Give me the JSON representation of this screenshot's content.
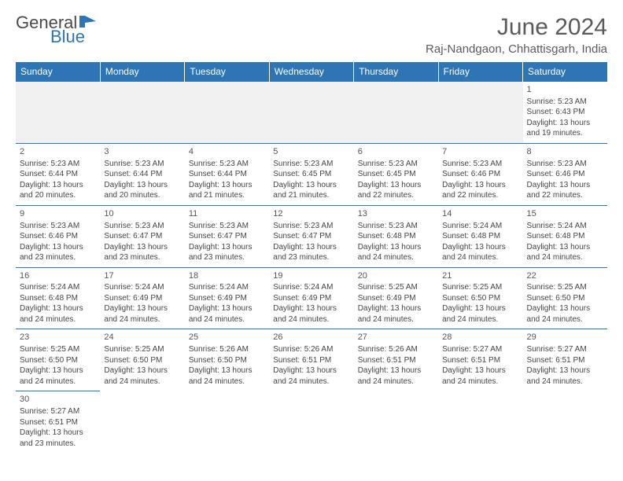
{
  "logo": {
    "text1": "General",
    "text2": "Blue",
    "accent": "#2e75b6"
  },
  "title": "June 2024",
  "location": "Raj-Nandgaon, Chhattisgarh, India",
  "colors": {
    "headerBg": "#2e75b6",
    "headerText": "#ffffff",
    "border": "#2e75b6",
    "text": "#444444",
    "muted": "#555555"
  },
  "weekdays": [
    "Sunday",
    "Monday",
    "Tuesday",
    "Wednesday",
    "Thursday",
    "Friday",
    "Saturday"
  ],
  "weeks": [
    [
      null,
      null,
      null,
      null,
      null,
      null,
      {
        "d": "1",
        "sr": "Sunrise: 5:23 AM",
        "ss": "Sunset: 6:43 PM",
        "dl1": "Daylight: 13 hours",
        "dl2": "and 19 minutes."
      }
    ],
    [
      {
        "d": "2",
        "sr": "Sunrise: 5:23 AM",
        "ss": "Sunset: 6:44 PM",
        "dl1": "Daylight: 13 hours",
        "dl2": "and 20 minutes."
      },
      {
        "d": "3",
        "sr": "Sunrise: 5:23 AM",
        "ss": "Sunset: 6:44 PM",
        "dl1": "Daylight: 13 hours",
        "dl2": "and 20 minutes."
      },
      {
        "d": "4",
        "sr": "Sunrise: 5:23 AM",
        "ss": "Sunset: 6:44 PM",
        "dl1": "Daylight: 13 hours",
        "dl2": "and 21 minutes."
      },
      {
        "d": "5",
        "sr": "Sunrise: 5:23 AM",
        "ss": "Sunset: 6:45 PM",
        "dl1": "Daylight: 13 hours",
        "dl2": "and 21 minutes."
      },
      {
        "d": "6",
        "sr": "Sunrise: 5:23 AM",
        "ss": "Sunset: 6:45 PM",
        "dl1": "Daylight: 13 hours",
        "dl2": "and 22 minutes."
      },
      {
        "d": "7",
        "sr": "Sunrise: 5:23 AM",
        "ss": "Sunset: 6:46 PM",
        "dl1": "Daylight: 13 hours",
        "dl2": "and 22 minutes."
      },
      {
        "d": "8",
        "sr": "Sunrise: 5:23 AM",
        "ss": "Sunset: 6:46 PM",
        "dl1": "Daylight: 13 hours",
        "dl2": "and 22 minutes."
      }
    ],
    [
      {
        "d": "9",
        "sr": "Sunrise: 5:23 AM",
        "ss": "Sunset: 6:46 PM",
        "dl1": "Daylight: 13 hours",
        "dl2": "and 23 minutes."
      },
      {
        "d": "10",
        "sr": "Sunrise: 5:23 AM",
        "ss": "Sunset: 6:47 PM",
        "dl1": "Daylight: 13 hours",
        "dl2": "and 23 minutes."
      },
      {
        "d": "11",
        "sr": "Sunrise: 5:23 AM",
        "ss": "Sunset: 6:47 PM",
        "dl1": "Daylight: 13 hours",
        "dl2": "and 23 minutes."
      },
      {
        "d": "12",
        "sr": "Sunrise: 5:23 AM",
        "ss": "Sunset: 6:47 PM",
        "dl1": "Daylight: 13 hours",
        "dl2": "and 23 minutes."
      },
      {
        "d": "13",
        "sr": "Sunrise: 5:23 AM",
        "ss": "Sunset: 6:48 PM",
        "dl1": "Daylight: 13 hours",
        "dl2": "and 24 minutes."
      },
      {
        "d": "14",
        "sr": "Sunrise: 5:24 AM",
        "ss": "Sunset: 6:48 PM",
        "dl1": "Daylight: 13 hours",
        "dl2": "and 24 minutes."
      },
      {
        "d": "15",
        "sr": "Sunrise: 5:24 AM",
        "ss": "Sunset: 6:48 PM",
        "dl1": "Daylight: 13 hours",
        "dl2": "and 24 minutes."
      }
    ],
    [
      {
        "d": "16",
        "sr": "Sunrise: 5:24 AM",
        "ss": "Sunset: 6:48 PM",
        "dl1": "Daylight: 13 hours",
        "dl2": "and 24 minutes."
      },
      {
        "d": "17",
        "sr": "Sunrise: 5:24 AM",
        "ss": "Sunset: 6:49 PM",
        "dl1": "Daylight: 13 hours",
        "dl2": "and 24 minutes."
      },
      {
        "d": "18",
        "sr": "Sunrise: 5:24 AM",
        "ss": "Sunset: 6:49 PM",
        "dl1": "Daylight: 13 hours",
        "dl2": "and 24 minutes."
      },
      {
        "d": "19",
        "sr": "Sunrise: 5:24 AM",
        "ss": "Sunset: 6:49 PM",
        "dl1": "Daylight: 13 hours",
        "dl2": "and 24 minutes."
      },
      {
        "d": "20",
        "sr": "Sunrise: 5:25 AM",
        "ss": "Sunset: 6:49 PM",
        "dl1": "Daylight: 13 hours",
        "dl2": "and 24 minutes."
      },
      {
        "d": "21",
        "sr": "Sunrise: 5:25 AM",
        "ss": "Sunset: 6:50 PM",
        "dl1": "Daylight: 13 hours",
        "dl2": "and 24 minutes."
      },
      {
        "d": "22",
        "sr": "Sunrise: 5:25 AM",
        "ss": "Sunset: 6:50 PM",
        "dl1": "Daylight: 13 hours",
        "dl2": "and 24 minutes."
      }
    ],
    [
      {
        "d": "23",
        "sr": "Sunrise: 5:25 AM",
        "ss": "Sunset: 6:50 PM",
        "dl1": "Daylight: 13 hours",
        "dl2": "and 24 minutes."
      },
      {
        "d": "24",
        "sr": "Sunrise: 5:25 AM",
        "ss": "Sunset: 6:50 PM",
        "dl1": "Daylight: 13 hours",
        "dl2": "and 24 minutes."
      },
      {
        "d": "25",
        "sr": "Sunrise: 5:26 AM",
        "ss": "Sunset: 6:50 PM",
        "dl1": "Daylight: 13 hours",
        "dl2": "and 24 minutes."
      },
      {
        "d": "26",
        "sr": "Sunrise: 5:26 AM",
        "ss": "Sunset: 6:51 PM",
        "dl1": "Daylight: 13 hours",
        "dl2": "and 24 minutes."
      },
      {
        "d": "27",
        "sr": "Sunrise: 5:26 AM",
        "ss": "Sunset: 6:51 PM",
        "dl1": "Daylight: 13 hours",
        "dl2": "and 24 minutes."
      },
      {
        "d": "28",
        "sr": "Sunrise: 5:27 AM",
        "ss": "Sunset: 6:51 PM",
        "dl1": "Daylight: 13 hours",
        "dl2": "and 24 minutes."
      },
      {
        "d": "29",
        "sr": "Sunrise: 5:27 AM",
        "ss": "Sunset: 6:51 PM",
        "dl1": "Daylight: 13 hours",
        "dl2": "and 24 minutes."
      }
    ],
    [
      {
        "d": "30",
        "sr": "Sunrise: 5:27 AM",
        "ss": "Sunset: 6:51 PM",
        "dl1": "Daylight: 13 hours",
        "dl2": "and 23 minutes."
      },
      null,
      null,
      null,
      null,
      null,
      null
    ]
  ]
}
